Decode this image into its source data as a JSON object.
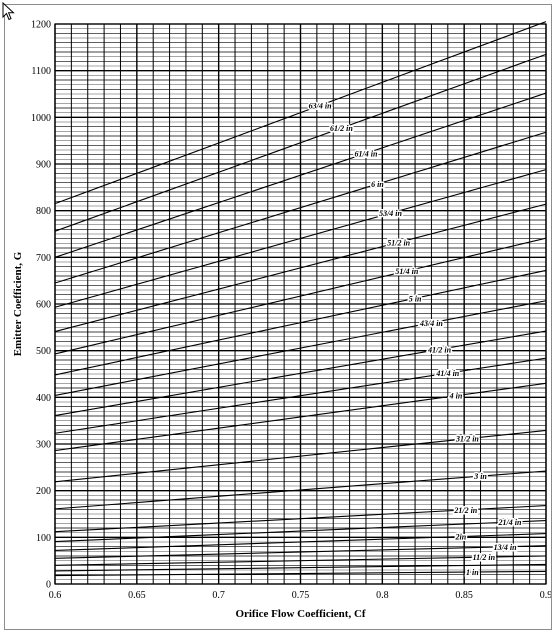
{
  "chart_data": {
    "type": "line",
    "title": "",
    "xlabel": "Orifice Flow Coefficient, Cf",
    "ylabel": "Emitter Coefficient, G",
    "xlim": [
      0.6,
      0.9
    ],
    "ylim": [
      0,
      1200
    ],
    "x_ticks": [
      "0.6",
      "0.65",
      "0.7",
      "0.75",
      "0.8",
      "0.85",
      "0.9"
    ],
    "y_ticks": [
      "0",
      "100",
      "200",
      "300",
      "400",
      "500",
      "600",
      "700",
      "800",
      "900",
      "1000",
      "1100",
      "1200"
    ],
    "grid": true,
    "legend": "none",
    "series": [
      {
        "name": "6 3/4 in",
        "x": [
          0.6,
          0.9
        ],
        "y": [
          815,
          1205
        ],
        "label_x": 0.762
      },
      {
        "name": "6 1/2 in",
        "x": [
          0.6,
          0.9
        ],
        "y": [
          756,
          1135
        ],
        "label_x": 0.775
      },
      {
        "name": "6 1/4 in",
        "x": [
          0.6,
          0.9
        ],
        "y": [
          700,
          1052
        ],
        "label_x": 0.79
      },
      {
        "name": "6 in",
        "x": [
          0.6,
          0.9
        ],
        "y": [
          645,
          968
        ],
        "label_x": 0.797
      },
      {
        "name": "5 3/4 in",
        "x": [
          0.6,
          0.9
        ],
        "y": [
          593,
          888
        ],
        "label_x": 0.805
      },
      {
        "name": "5 1/2 in",
        "x": [
          0.6,
          0.9
        ],
        "y": [
          541,
          814
        ],
        "label_x": 0.81
      },
      {
        "name": "5 1/4 in",
        "x": [
          0.6,
          0.9
        ],
        "y": [
          493,
          741
        ],
        "label_x": 0.815
      },
      {
        "name": "5 in",
        "x": [
          0.6,
          0.9
        ],
        "y": [
          448,
          672
        ],
        "label_x": 0.82
      },
      {
        "name": "4 3/4 in",
        "x": [
          0.6,
          0.9
        ],
        "y": [
          404,
          607
        ],
        "label_x": 0.83
      },
      {
        "name": "4 1/2 in",
        "x": [
          0.6,
          0.9
        ],
        "y": [
          361,
          542
        ],
        "label_x": 0.835
      },
      {
        "name": "4 1/4 in",
        "x": [
          0.6,
          0.9
        ],
        "y": [
          323,
          484
        ],
        "label_x": 0.84
      },
      {
        "name": "4 in",
        "x": [
          0.6,
          0.9
        ],
        "y": [
          286,
          430
        ],
        "label_x": 0.845
      },
      {
        "name": "3 1/2 in",
        "x": [
          0.6,
          0.9
        ],
        "y": [
          219,
          329
        ],
        "label_x": 0.852
      },
      {
        "name": "3 in",
        "x": [
          0.6,
          0.9
        ],
        "y": [
          161,
          242
        ],
        "label_x": 0.86
      },
      {
        "name": "2 1/2 in",
        "x": [
          0.6,
          0.9
        ],
        "y": [
          112,
          168
        ],
        "label_x": 0.851
      },
      {
        "name": "2 1/4 in",
        "x": [
          0.6,
          0.9
        ],
        "y": [
          91,
          136
        ],
        "label_x": 0.878
      },
      {
        "name": "2 in",
        "x": [
          0.6,
          0.9
        ],
        "y": [
          72,
          108
        ],
        "label_x": 0.848
      },
      {
        "name": "1 3/4 in",
        "x": [
          0.6,
          0.9
        ],
        "y": [
          55,
          82
        ],
        "label_x": 0.875
      },
      {
        "name": "1 1/2 in",
        "x": [
          0.6,
          0.9
        ],
        "y": [
          40,
          60
        ],
        "label_x": 0.862
      },
      {
        "name": "1 1/4 in",
        "x": [
          0.6,
          0.9
        ],
        "y": [
          28,
          42
        ],
        "label_x": 0.87
      },
      {
        "name": "1 in",
        "x": [
          0.6,
          0.9
        ],
        "y": [
          18,
          27
        ],
        "label_x": 0.855
      }
    ],
    "annotations": [
      {
        "text": "63/4 in",
        "series": 0
      },
      {
        "text": "61/2 in",
        "series": 1
      },
      {
        "text": "61/4 in",
        "series": 2
      },
      {
        "text": "6 in",
        "series": 3
      },
      {
        "text": "53/4 in",
        "series": 4
      },
      {
        "text": "51/2 in",
        "series": 5
      },
      {
        "text": "51/4 in",
        "series": 6
      },
      {
        "text": "5 in",
        "series": 7
      },
      {
        "text": "43/4 in",
        "series": 8
      },
      {
        "text": "41/2 in",
        "series": 9
      },
      {
        "text": "41/4 in",
        "series": 10
      },
      {
        "text": "4 in",
        "series": 11
      },
      {
        "text": "31/2 in",
        "series": 12
      },
      {
        "text": "3 in",
        "series": 13
      },
      {
        "text": "21/2 in",
        "series": 14
      },
      {
        "text": "21/4 in",
        "series": 15
      },
      {
        "text": "2in",
        "series": 16
      },
      {
        "text": "13/4 in",
        "series": 17
      },
      {
        "text": "11/2 in",
        "series": 18
      },
      {
        "text": "1 in",
        "series": 20
      }
    ]
  }
}
